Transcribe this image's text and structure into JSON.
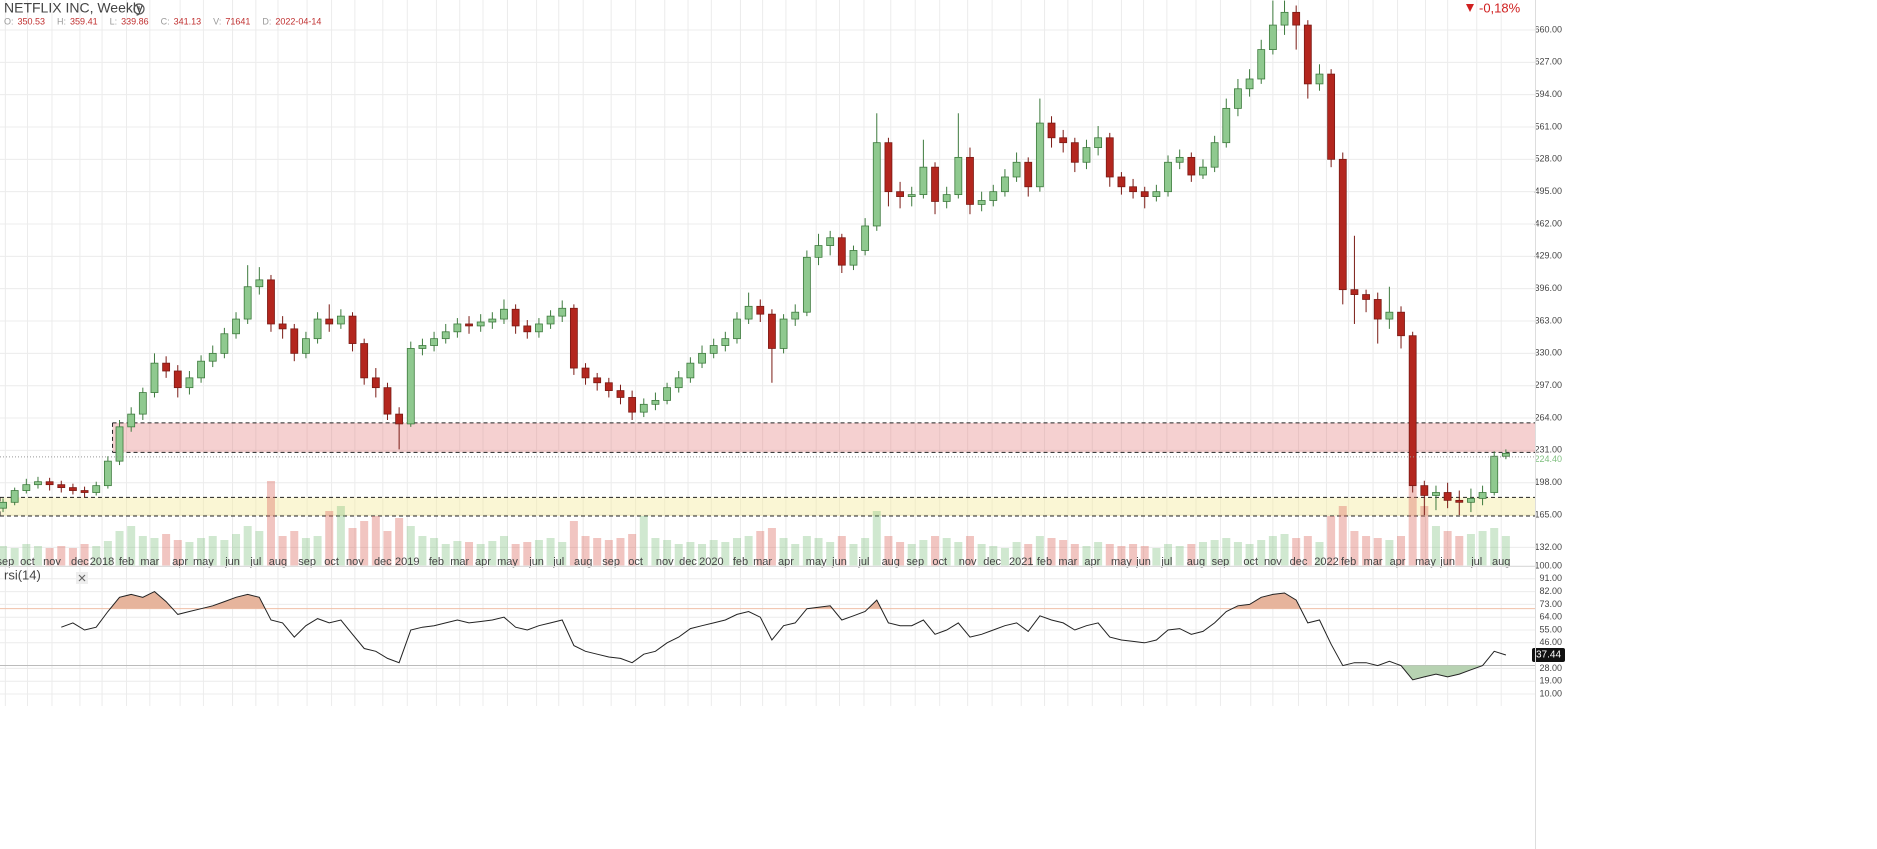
{
  "chart_data": {
    "type": "candlestick",
    "title": "NETFLIX INC, Weekly",
    "info": [
      {
        "label": "O:",
        "value": "350.53"
      },
      {
        "label": "H:",
        "value": "359.41"
      },
      {
        "label": "L:",
        "value": "339.86"
      },
      {
        "label": "C:",
        "value": "341.13"
      },
      {
        "label": "V:",
        "value": "71641"
      },
      {
        "label": "D:",
        "value": "2022-04-14"
      }
    ],
    "change": "-0,18%",
    "up_color": "#8fc98f",
    "up_edge": "#3d7a3d",
    "down_color": "#b3261e",
    "down_edge": "#7a1a14",
    "xlim": [
      -0.26,
      131.5
    ],
    "xticks": [
      {
        "value": 0.2,
        "label": "sep"
      },
      {
        "value": 2.1,
        "label": "oct"
      },
      {
        "value": 4.2,
        "label": "nov"
      },
      {
        "value": 6.6,
        "label": "dec"
      },
      {
        "value": 8.5,
        "label": "2018"
      },
      {
        "value": 10.6,
        "label": "feb"
      },
      {
        "value": 12.6,
        "label": "mar"
      },
      {
        "value": 15.2,
        "label": "apr"
      },
      {
        "value": 17.2,
        "label": "may"
      },
      {
        "value": 19.7,
        "label": "jun"
      },
      {
        "value": 21.7,
        "label": "jul"
      },
      {
        "value": 23.6,
        "label": "aug"
      },
      {
        "value": 26.1,
        "label": "sep"
      },
      {
        "value": 28.2,
        "label": "oct"
      },
      {
        "value": 30.2,
        "label": "nov"
      },
      {
        "value": 32.6,
        "label": "dec"
      },
      {
        "value": 34.7,
        "label": "2019"
      },
      {
        "value": 37.2,
        "label": "feb"
      },
      {
        "value": 39.2,
        "label": "mar"
      },
      {
        "value": 41.2,
        "label": "apr"
      },
      {
        "value": 43.3,
        "label": "may"
      },
      {
        "value": 45.8,
        "label": "jun"
      },
      {
        "value": 47.7,
        "label": "jul"
      },
      {
        "value": 49.8,
        "label": "aug"
      },
      {
        "value": 52.2,
        "label": "sep"
      },
      {
        "value": 54.3,
        "label": "oct"
      },
      {
        "value": 56.8,
        "label": "nov"
      },
      {
        "value": 58.8,
        "label": "dec"
      },
      {
        "value": 60.8,
        "label": "2020"
      },
      {
        "value": 63.3,
        "label": "feb"
      },
      {
        "value": 65.2,
        "label": "mar"
      },
      {
        "value": 67.2,
        "label": "apr"
      },
      {
        "value": 69.8,
        "label": "may"
      },
      {
        "value": 71.8,
        "label": "jun"
      },
      {
        "value": 73.9,
        "label": "jul"
      },
      {
        "value": 76.2,
        "label": "aug"
      },
      {
        "value": 78.3,
        "label": "sep"
      },
      {
        "value": 80.4,
        "label": "oct"
      },
      {
        "value": 82.8,
        "label": "nov"
      },
      {
        "value": 84.9,
        "label": "dec"
      },
      {
        "value": 87.4,
        "label": "2021"
      },
      {
        "value": 89.4,
        "label": "feb"
      },
      {
        "value": 91.4,
        "label": "mar"
      },
      {
        "value": 93.5,
        "label": "apr"
      },
      {
        "value": 96.0,
        "label": "may"
      },
      {
        "value": 97.9,
        "label": "jun"
      },
      {
        "value": 99.9,
        "label": "jul"
      },
      {
        "value": 102.4,
        "label": "aug"
      },
      {
        "value": 104.5,
        "label": "sep"
      },
      {
        "value": 107.1,
        "label": "oct"
      },
      {
        "value": 109.0,
        "label": "nov"
      },
      {
        "value": 111.2,
        "label": "dec"
      },
      {
        "value": 113.6,
        "label": "2022"
      },
      {
        "value": 115.5,
        "label": "feb"
      },
      {
        "value": 117.6,
        "label": "mar"
      },
      {
        "value": 119.7,
        "label": "apr"
      },
      {
        "value": 122.1,
        "label": "may"
      },
      {
        "value": 124.0,
        "label": "jun"
      },
      {
        "value": 126.5,
        "label": "jul"
      },
      {
        "value": 128.6,
        "label": "aug"
      }
    ],
    "ylim": [
      113,
      690.6
    ],
    "yticks": [
      {
        "value": 660,
        "label": "660.00"
      },
      {
        "value": 627,
        "label": "627.00"
      },
      {
        "value": 594,
        "label": "594.00"
      },
      {
        "value": 561,
        "label": "561.00"
      },
      {
        "value": 528,
        "label": "528.00"
      },
      {
        "value": 495,
        "label": "495.00"
      },
      {
        "value": 462,
        "label": "462.00"
      },
      {
        "value": 429,
        "label": "429.00"
      },
      {
        "value": 396,
        "label": "396.00"
      },
      {
        "value": 363,
        "label": "363.00"
      },
      {
        "value": 330,
        "label": "330.00"
      },
      {
        "value": 297,
        "label": "297.00"
      },
      {
        "value": 264,
        "label": "264.00"
      },
      {
        "value": 231,
        "label": "231.00"
      },
      {
        "value": 198,
        "label": "198.00"
      },
      {
        "value": 165,
        "label": "165.00"
      },
      {
        "value": 132,
        "label": "132.00"
      }
    ],
    "last_price": {
      "value": 224.4,
      "label": "224.40",
      "color": "#7fbf7f"
    },
    "zones": [
      {
        "low": 229,
        "high": 259,
        "from": 9.4,
        "color": "rgba(225,110,110,0.32)"
      },
      {
        "low": 164,
        "high": 183,
        "from": -0.26,
        "color": "rgba(245,235,160,0.45)"
      }
    ],
    "open": [
      172,
      178,
      190,
      196,
      199,
      196,
      193,
      190,
      188,
      195,
      220,
      255,
      268,
      290,
      320,
      312,
      295,
      305,
      322,
      330,
      350,
      365,
      398,
      405,
      360,
      355,
      330,
      345,
      365,
      360,
      368,
      340,
      305,
      295,
      268,
      258,
      335,
      338,
      345,
      352,
      360,
      358,
      362,
      365,
      375,
      358,
      352,
      360,
      368,
      376,
      315,
      305,
      300,
      292,
      285,
      270,
      278,
      282,
      295,
      305,
      320,
      330,
      338,
      345,
      365,
      378,
      370,
      335,
      365,
      372,
      428,
      440,
      448,
      420,
      435,
      460,
      545,
      495,
      490,
      492,
      520,
      485,
      492,
      530,
      482,
      486,
      495,
      510,
      525,
      500,
      565,
      550,
      545,
      525,
      540,
      550,
      510,
      500,
      495,
      490,
      495,
      525,
      530,
      512,
      520,
      545,
      580,
      600,
      610,
      640,
      665,
      678,
      665,
      605,
      615,
      528,
      395,
      390,
      385,
      365,
      372,
      348,
      195,
      185,
      188,
      180,
      178,
      182,
      188,
      225
    ],
    "high": [
      182,
      193,
      202,
      204,
      203,
      200,
      197,
      194,
      199,
      225,
      262,
      275,
      295,
      330,
      327,
      318,
      312,
      328,
      338,
      356,
      372,
      420,
      418,
      410,
      368,
      360,
      352,
      372,
      380,
      375,
      372,
      345,
      315,
      300,
      275,
      342,
      345,
      352,
      360,
      366,
      368,
      370,
      372,
      385,
      380,
      364,
      366,
      374,
      384,
      380,
      320,
      310,
      305,
      298,
      292,
      284,
      290,
      300,
      312,
      326,
      338,
      345,
      352,
      372,
      392,
      385,
      375,
      370,
      380,
      435,
      452,
      455,
      452,
      440,
      468,
      575,
      550,
      505,
      500,
      548,
      525,
      500,
      575,
      540,
      495,
      502,
      518,
      535,
      530,
      590,
      572,
      558,
      550,
      548,
      562,
      555,
      515,
      508,
      500,
      502,
      532,
      538,
      535,
      528,
      552,
      590,
      610,
      620,
      650,
      690,
      690,
      685,
      670,
      625,
      620,
      535,
      450,
      395,
      392,
      398,
      378,
      352,
      200,
      195,
      198,
      190,
      192,
      195,
      230,
      232
    ],
    "low": [
      168,
      175,
      187,
      192,
      190,
      188,
      186,
      183,
      185,
      192,
      216,
      250,
      262,
      285,
      305,
      285,
      288,
      300,
      316,
      325,
      345,
      360,
      390,
      352,
      345,
      322,
      325,
      340,
      352,
      355,
      332,
      298,
      285,
      262,
      232,
      255,
      328,
      332,
      340,
      346,
      350,
      352,
      355,
      360,
      350,
      345,
      346,
      355,
      362,
      308,
      298,
      292,
      285,
      278,
      262,
      265,
      272,
      278,
      290,
      300,
      315,
      325,
      332,
      340,
      360,
      362,
      300,
      330,
      358,
      368,
      420,
      430,
      412,
      415,
      430,
      455,
      480,
      478,
      480,
      488,
      472,
      478,
      488,
      472,
      475,
      480,
      490,
      505,
      490,
      495,
      540,
      535,
      515,
      518,
      532,
      500,
      492,
      488,
      478,
      485,
      490,
      518,
      505,
      508,
      515,
      540,
      572,
      592,
      605,
      635,
      655,
      640,
      590,
      598,
      520,
      380,
      360,
      372,
      340,
      355,
      335,
      188,
      165,
      170,
      172,
      165,
      168,
      175,
      185,
      222
    ],
    "close": [
      178,
      190,
      196,
      199,
      196,
      193,
      190,
      188,
      195,
      220,
      255,
      268,
      290,
      320,
      312,
      295,
      305,
      322,
      330,
      350,
      365,
      398,
      405,
      360,
      355,
      330,
      345,
      365,
      360,
      368,
      340,
      305,
      295,
      268,
      258,
      335,
      338,
      345,
      352,
      360,
      358,
      362,
      365,
      375,
      358,
      352,
      360,
      368,
      376,
      315,
      305,
      300,
      292,
      285,
      270,
      278,
      282,
      295,
      305,
      320,
      330,
      338,
      345,
      365,
      378,
      370,
      335,
      365,
      372,
      428,
      440,
      448,
      420,
      435,
      460,
      545,
      495,
      490,
      492,
      520,
      485,
      492,
      530,
      482,
      486,
      495,
      510,
      525,
      500,
      565,
      550,
      545,
      525,
      540,
      550,
      510,
      500,
      495,
      490,
      495,
      525,
      530,
      512,
      520,
      545,
      580,
      600,
      610,
      640,
      665,
      678,
      665,
      605,
      615,
      528,
      395,
      390,
      385,
      365,
      372,
      348,
      195,
      185,
      188,
      180,
      178,
      182,
      188,
      225,
      228
    ],
    "volume": {
      "ylim": [
        0,
        100
      ],
      "up_color": "rgba(120,190,120,0.35)",
      "down_color": "rgba(220,110,100,0.4)",
      "values": [
        20,
        18,
        22,
        20,
        18,
        20,
        18,
        22,
        20,
        25,
        35,
        40,
        30,
        28,
        32,
        26,
        24,
        28,
        30,
        26,
        32,
        40,
        35,
        85,
        30,
        35,
        28,
        30,
        55,
        60,
        38,
        45,
        50,
        35,
        48,
        40,
        30,
        28,
        22,
        25,
        24,
        22,
        25,
        30,
        22,
        24,
        26,
        28,
        24,
        45,
        30,
        28,
        26,
        28,
        32,
        50,
        28,
        26,
        22,
        24,
        22,
        26,
        24,
        28,
        30,
        35,
        38,
        28,
        22,
        30,
        28,
        24,
        30,
        22,
        28,
        55,
        30,
        24,
        22,
        26,
        30,
        28,
        24,
        30,
        22,
        20,
        18,
        24,
        22,
        30,
        28,
        26,
        22,
        20,
        24,
        22,
        20,
        22,
        20,
        18,
        22,
        20,
        22,
        24,
        26,
        28,
        24,
        22,
        26,
        30,
        32,
        28,
        30,
        24,
        50,
        60,
        35,
        30,
        28,
        26,
        30,
        80,
        60,
        40,
        35,
        30,
        32,
        35,
        38,
        30
      ]
    },
    "rsi": {
      "title": "rsi(14)",
      "color": "#222",
      "ylim": [
        10,
        100
      ],
      "overbought": 70,
      "oversold": 30,
      "overbought_color": "#e6b49c",
      "oversold_color": "#b7d2b2",
      "yticks": [
        {
          "value": 100,
          "label": "100.00"
        },
        {
          "value": 91,
          "label": "91.00"
        },
        {
          "value": 82,
          "label": "82.00"
        },
        {
          "value": 73,
          "label": "73.00"
        },
        {
          "value": 64,
          "label": "64.00"
        },
        {
          "value": 55,
          "label": "55.00"
        },
        {
          "value": 46,
          "label": "46.00"
        },
        {
          "value": 28,
          "label": "28.00"
        },
        {
          "value": 19,
          "label": "19.00"
        },
        {
          "value": 10,
          "label": "10.00"
        }
      ],
      "values": [
        null,
        null,
        null,
        null,
        null,
        57,
        60,
        55,
        57,
        68,
        78,
        80,
        78,
        82,
        75,
        66,
        68,
        70,
        72,
        75,
        78,
        80,
        78,
        62,
        60,
        50,
        58,
        63,
        60,
        62,
        52,
        42,
        40,
        35,
        32,
        55,
        57,
        58,
        60,
        62,
        60,
        61,
        62,
        64,
        57,
        55,
        58,
        60,
        62,
        44,
        40,
        38,
        36,
        35,
        32,
        38,
        40,
        46,
        50,
        56,
        58,
        60,
        62,
        66,
        68,
        64,
        48,
        58,
        60,
        70,
        71,
        72,
        62,
        65,
        68,
        76,
        60,
        58,
        58,
        62,
        52,
        55,
        60,
        50,
        52,
        55,
        58,
        60,
        54,
        65,
        62,
        60,
        55,
        58,
        60,
        50,
        48,
        47,
        46,
        48,
        55,
        56,
        52,
        54,
        60,
        68,
        72,
        73,
        78,
        80,
        81,
        76,
        60,
        62,
        45,
        30,
        32,
        32,
        30,
        33,
        30,
        20,
        22,
        24,
        22,
        24,
        27,
        30,
        40,
        37.44
      ]
    }
  }
}
